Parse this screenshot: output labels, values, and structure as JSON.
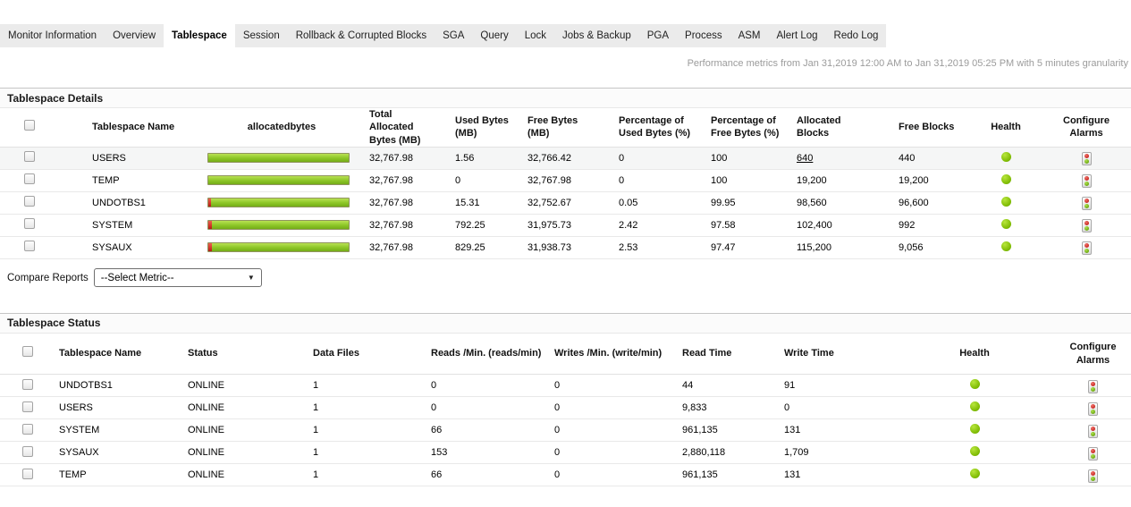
{
  "tabs": [
    {
      "label": "Monitor Information"
    },
    {
      "label": "Overview"
    },
    {
      "label": "Tablespace"
    },
    {
      "label": "Session"
    },
    {
      "label": "Rollback & Corrupted Blocks"
    },
    {
      "label": "SGA"
    },
    {
      "label": "Query"
    },
    {
      "label": "Lock"
    },
    {
      "label": "Jobs & Backup"
    },
    {
      "label": "PGA"
    },
    {
      "label": "Process"
    },
    {
      "label": "ASM"
    },
    {
      "label": "Alert Log"
    },
    {
      "label": "Redo Log"
    }
  ],
  "active_tab": "Tablespace",
  "metrics_note": "Performance metrics from Jan 31,2019 12:00 AM to Jan 31,2019 05:25 PM with 5 minutes granularity",
  "tablespace_details": {
    "title": "Tablespace Details",
    "columns": [
      "Tablespace Name",
      "allocatedbytes",
      "Total Allocated Bytes (MB)",
      "Used Bytes (MB)",
      "Free Bytes (MB)",
      "Percentage of Used Bytes (%)",
      "Percentage of Free Bytes (%)",
      "Allocated Blocks",
      "Free Blocks",
      "Health",
      "Configure Alarms"
    ],
    "rows": [
      {
        "name": "USERS",
        "bar_used_pct": "0",
        "total_allocated_mb": "32,767.98",
        "used_mb": "1.56",
        "free_mb": "32,766.42",
        "pct_used": "0",
        "pct_free": "100",
        "allocated_blocks": "640",
        "free_blocks": "440",
        "health": "green"
      },
      {
        "name": "TEMP",
        "bar_used_pct": "0",
        "total_allocated_mb": "32,767.98",
        "used_mb": "0",
        "free_mb": "32,767.98",
        "pct_used": "0",
        "pct_free": "100",
        "allocated_blocks": "19,200",
        "free_blocks": "19,200",
        "health": "green"
      },
      {
        "name": "UNDOTBS1",
        "bar_used_pct": "0.05",
        "total_allocated_mb": "32,767.98",
        "used_mb": "15.31",
        "free_mb": "32,752.67",
        "pct_used": "0.05",
        "pct_free": "99.95",
        "allocated_blocks": "98,560",
        "free_blocks": "96,600",
        "health": "green"
      },
      {
        "name": "SYSTEM",
        "bar_used_pct": "2.42",
        "total_allocated_mb": "32,767.98",
        "used_mb": "792.25",
        "free_mb": "31,975.73",
        "pct_used": "2.42",
        "pct_free": "97.58",
        "allocated_blocks": "102,400",
        "free_blocks": "992",
        "health": "green"
      },
      {
        "name": "SYSAUX",
        "bar_used_pct": "2.53",
        "total_allocated_mb": "32,767.98",
        "used_mb": "829.25",
        "free_mb": "31,938.73",
        "pct_used": "2.53",
        "pct_free": "97.47",
        "allocated_blocks": "115,200",
        "free_blocks": "9,056",
        "health": "green"
      }
    ]
  },
  "compare_reports": {
    "label": "Compare Reports",
    "selected": "--Select Metric--"
  },
  "tablespace_status": {
    "title": "Tablespace Status",
    "columns": [
      "Tablespace Name",
      "Status",
      "Data Files",
      "Reads /Min. (reads/min)",
      "Writes /Min. (write/min)",
      "Read Time",
      "Write Time",
      "Health",
      "Configure Alarms"
    ],
    "rows": [
      {
        "name": "UNDOTBS1",
        "status": "ONLINE",
        "data_files": "1",
        "reads_per_min": "0",
        "writes_per_min": "0",
        "read_time": "44",
        "write_time": "91",
        "health": "green"
      },
      {
        "name": "USERS",
        "status": "ONLINE",
        "data_files": "1",
        "reads_per_min": "0",
        "writes_per_min": "0",
        "read_time": "9,833",
        "write_time": "0",
        "health": "green"
      },
      {
        "name": "SYSTEM",
        "status": "ONLINE",
        "data_files": "1",
        "reads_per_min": "66",
        "writes_per_min": "0",
        "read_time": "961,135",
        "write_time": "131",
        "health": "green"
      },
      {
        "name": "SYSAUX",
        "status": "ONLINE",
        "data_files": "1",
        "reads_per_min": "153",
        "writes_per_min": "0",
        "read_time": "2,880,118",
        "write_time": "1,709",
        "health": "green"
      },
      {
        "name": "TEMP",
        "status": "ONLINE",
        "data_files": "1",
        "reads_per_min": "66",
        "writes_per_min": "0",
        "read_time": "961,135",
        "write_time": "131",
        "health": "green"
      }
    ]
  },
  "colors": {
    "tab_strip": "#ebebeb",
    "bar_green": "#8cc627",
    "bar_red": "#d2362a",
    "health_green": "#7cb900",
    "note_gray": "#9b9b9b"
  }
}
